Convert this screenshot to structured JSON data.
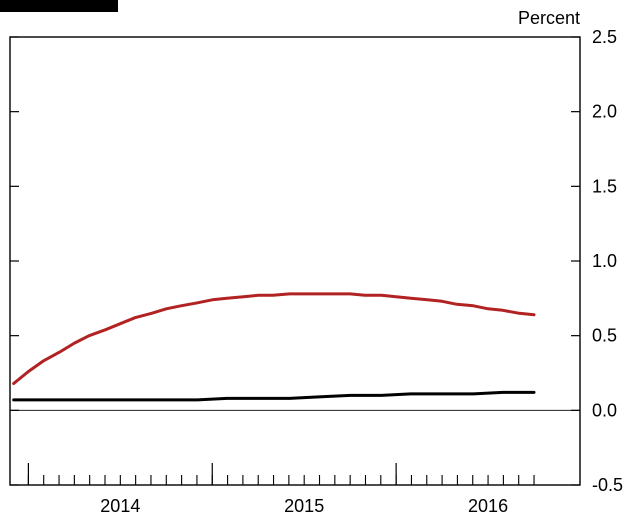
{
  "chart_data": {
    "type": "line",
    "title": "",
    "ylabel": "Percent",
    "xlabel": "",
    "ylim": [
      -0.5,
      2.5
    ],
    "ytick_values": [
      -0.5,
      0.0,
      0.5,
      1.0,
      1.5,
      2.0,
      2.5
    ],
    "ytick_labels": [
      "-0.5",
      "0.0",
      "0.5",
      "1.0",
      "1.5",
      "2.0",
      "2.5"
    ],
    "xlim": [
      2013.4,
      2016.5
    ],
    "major_ticks": [
      2013.5,
      2014.5,
      2015.5
    ],
    "xtick_labels": [
      {
        "x": 2014.0,
        "label": "2014"
      },
      {
        "x": 2015.0,
        "label": "2015"
      },
      {
        "x": 2016.0,
        "label": "2016"
      }
    ],
    "minor_tick_start": 2013.5,
    "minor_tick_end": 2016.25,
    "minor_tick_step": 0.08333333,
    "zero_line": 0.0,
    "grid": false,
    "series": [
      {
        "color": "#b22222",
        "x": [
          2013.42,
          2013.5,
          2013.58,
          2013.67,
          2013.75,
          2013.83,
          2013.92,
          2014.0,
          2014.08,
          2014.17,
          2014.25,
          2014.33,
          2014.42,
          2014.5,
          2014.58,
          2014.67,
          2014.75,
          2014.83,
          2014.92,
          2015.0,
          2015.08,
          2015.17,
          2015.25,
          2015.33,
          2015.42,
          2015.5,
          2015.58,
          2015.67,
          2015.75,
          2015.83,
          2015.92,
          2016.0,
          2016.08,
          2016.17,
          2016.25
        ],
        "y": [
          0.18,
          0.26,
          0.33,
          0.39,
          0.45,
          0.5,
          0.54,
          0.58,
          0.62,
          0.65,
          0.68,
          0.7,
          0.72,
          0.74,
          0.75,
          0.76,
          0.77,
          0.77,
          0.78,
          0.78,
          0.78,
          0.78,
          0.78,
          0.77,
          0.77,
          0.76,
          0.75,
          0.74,
          0.73,
          0.71,
          0.7,
          0.68,
          0.67,
          0.65,
          0.64
        ]
      },
      {
        "color": "#000000",
        "x": [
          2013.42,
          2013.58,
          2013.75,
          2013.92,
          2014.08,
          2014.25,
          2014.42,
          2014.58,
          2014.75,
          2014.92,
          2015.08,
          2015.25,
          2015.42,
          2015.58,
          2015.75,
          2015.92,
          2016.08,
          2016.25
        ],
        "y": [
          0.07,
          0.07,
          0.07,
          0.07,
          0.07,
          0.07,
          0.07,
          0.08,
          0.08,
          0.08,
          0.09,
          0.1,
          0.1,
          0.11,
          0.11,
          0.11,
          0.12,
          0.12
        ]
      }
    ]
  }
}
